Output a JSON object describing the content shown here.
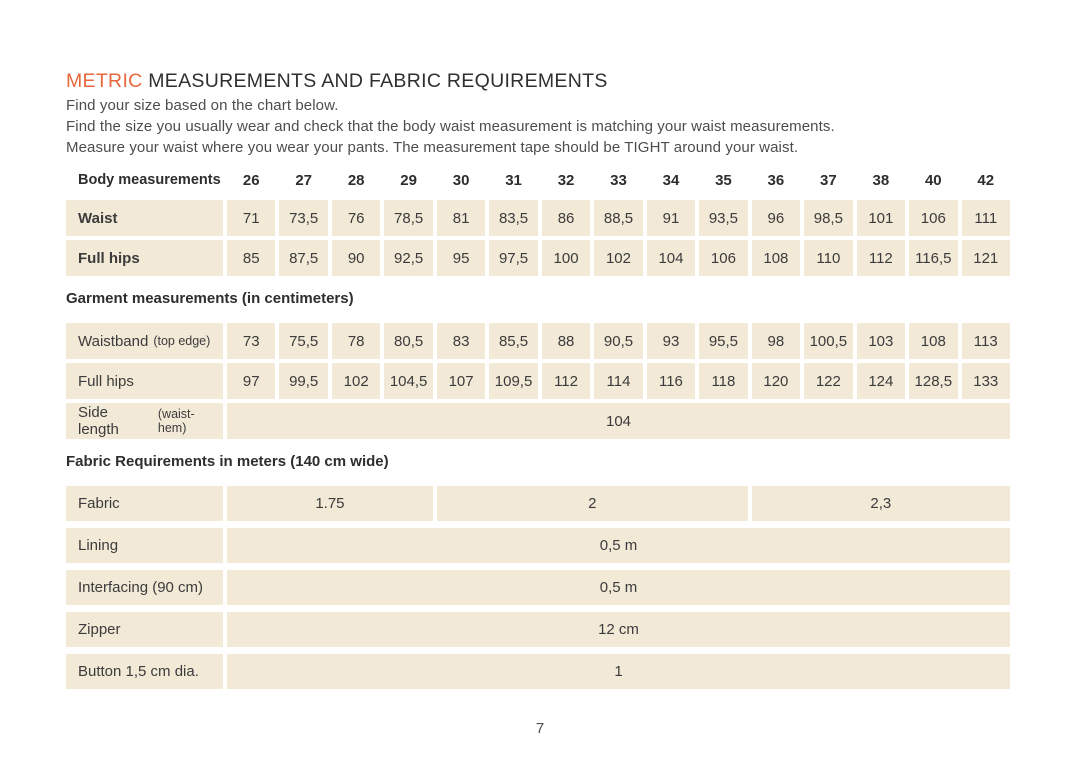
{
  "page": {
    "title_highlight": "METRIC",
    "title_rest": " MEASUREMENTS AND FABRIC REQUIREMENTS",
    "intro_lines": [
      "Find your size based on the chart below.",
      "Find the size you usually wear and check that the body waist measurement is matching your waist measurements.",
      "Measure your waist where you wear your pants. The measurement tape should be TIGHT around your waist."
    ],
    "page_number": "7"
  },
  "colors": {
    "accent_orange": "#e8673c",
    "cell_beige": "#f2e9d7",
    "text_dark": "#2f2f2f"
  },
  "body_table": {
    "header_label": "Body measurements",
    "sizes": [
      "26",
      "27",
      "28",
      "29",
      "30",
      "31",
      "32",
      "33",
      "34",
      "35",
      "36",
      "37",
      "38",
      "40",
      "42"
    ],
    "rows": [
      {
        "label": "Waist",
        "values": [
          "71",
          "73,5",
          "76",
          "78,5",
          "81",
          "83,5",
          "86",
          "88,5",
          "91",
          "93,5",
          "96",
          "98,5",
          "101",
          "106",
          "111"
        ]
      },
      {
        "label": "Full hips",
        "values": [
          "85",
          "87,5",
          "90",
          "92,5",
          "95",
          "97,5",
          "100",
          "102",
          "104",
          "106",
          "108",
          "110",
          "112",
          "116,5",
          "121"
        ]
      }
    ]
  },
  "garment_table": {
    "heading": "Garment measurements (in centimeters)",
    "rows": [
      {
        "label": "Waistband",
        "label_note": "(top edge)",
        "values": [
          "73",
          "75,5",
          "78",
          "80,5",
          "83",
          "85,5",
          "88",
          "90,5",
          "93",
          "95,5",
          "98",
          "100,5",
          "103",
          "108",
          "113"
        ]
      },
      {
        "label": "Full hips",
        "label_note": "",
        "values": [
          "97",
          "99,5",
          "102",
          "104,5",
          "107",
          "109,5",
          "112",
          "114",
          "116",
          "118",
          "120",
          "122",
          "124",
          "128,5",
          "133"
        ]
      }
    ],
    "side_length": {
      "label": "Side length",
      "label_note": "(waist-hem)",
      "value": "104"
    }
  },
  "fabric_table": {
    "heading": "Fabric Requirements in meters (140 cm wide)",
    "fabric_row": {
      "label": "Fabric",
      "segments": [
        {
          "value": "1.75",
          "span": 4
        },
        {
          "value": "2",
          "span": 6
        },
        {
          "value": "2,3",
          "span": 5
        }
      ]
    },
    "rows": [
      {
        "label": "Lining",
        "value": "0,5 m"
      },
      {
        "label": "Interfacing (90 cm)",
        "value": "0,5 m"
      },
      {
        "label": "Zipper",
        "value": "12 cm"
      },
      {
        "label": "Button 1,5 cm dia.",
        "value": "1"
      }
    ]
  }
}
